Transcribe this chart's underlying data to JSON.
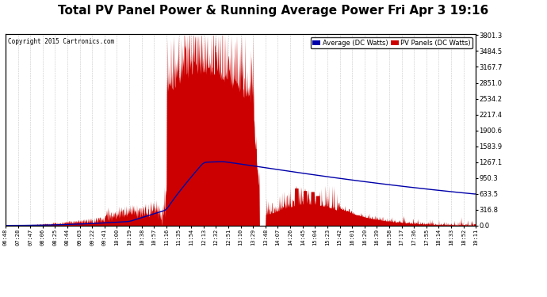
{
  "title": "Total PV Panel Power & Running Average Power Fri Apr 3 19:16",
  "copyright": "Copyright 2015 Cartronics.com",
  "ytick_values": [
    0.0,
    316.8,
    633.5,
    950.3,
    1267.1,
    1583.9,
    1900.6,
    2217.4,
    2534.2,
    2851.0,
    3167.7,
    3484.5,
    3801.3
  ],
  "ymax": 3801.3,
  "ymin": 0.0,
  "bg_color": "#ffffff",
  "plot_bg": "#ffffff",
  "grid_color": "#c8c8c8",
  "pv_color": "#cc0000",
  "avg_color": "#0000aa",
  "title_fontsize": 11,
  "legend_avg_label": "Average (DC Watts)",
  "legend_pv_label": "PV Panels (DC Watts)",
  "x_labels": [
    "06:48",
    "07:28",
    "07:47",
    "08:06",
    "08:25",
    "08:44",
    "09:03",
    "09:22",
    "09:41",
    "10:00",
    "10:19",
    "10:38",
    "10:57",
    "11:16",
    "11:35",
    "11:54",
    "12:13",
    "12:32",
    "12:51",
    "13:10",
    "13:29",
    "13:48",
    "14:07",
    "14:26",
    "14:45",
    "15:04",
    "15:23",
    "15:42",
    "16:01",
    "16:20",
    "16:39",
    "16:58",
    "17:17",
    "17:36",
    "17:55",
    "18:14",
    "18:33",
    "18:52",
    "19:11"
  ]
}
